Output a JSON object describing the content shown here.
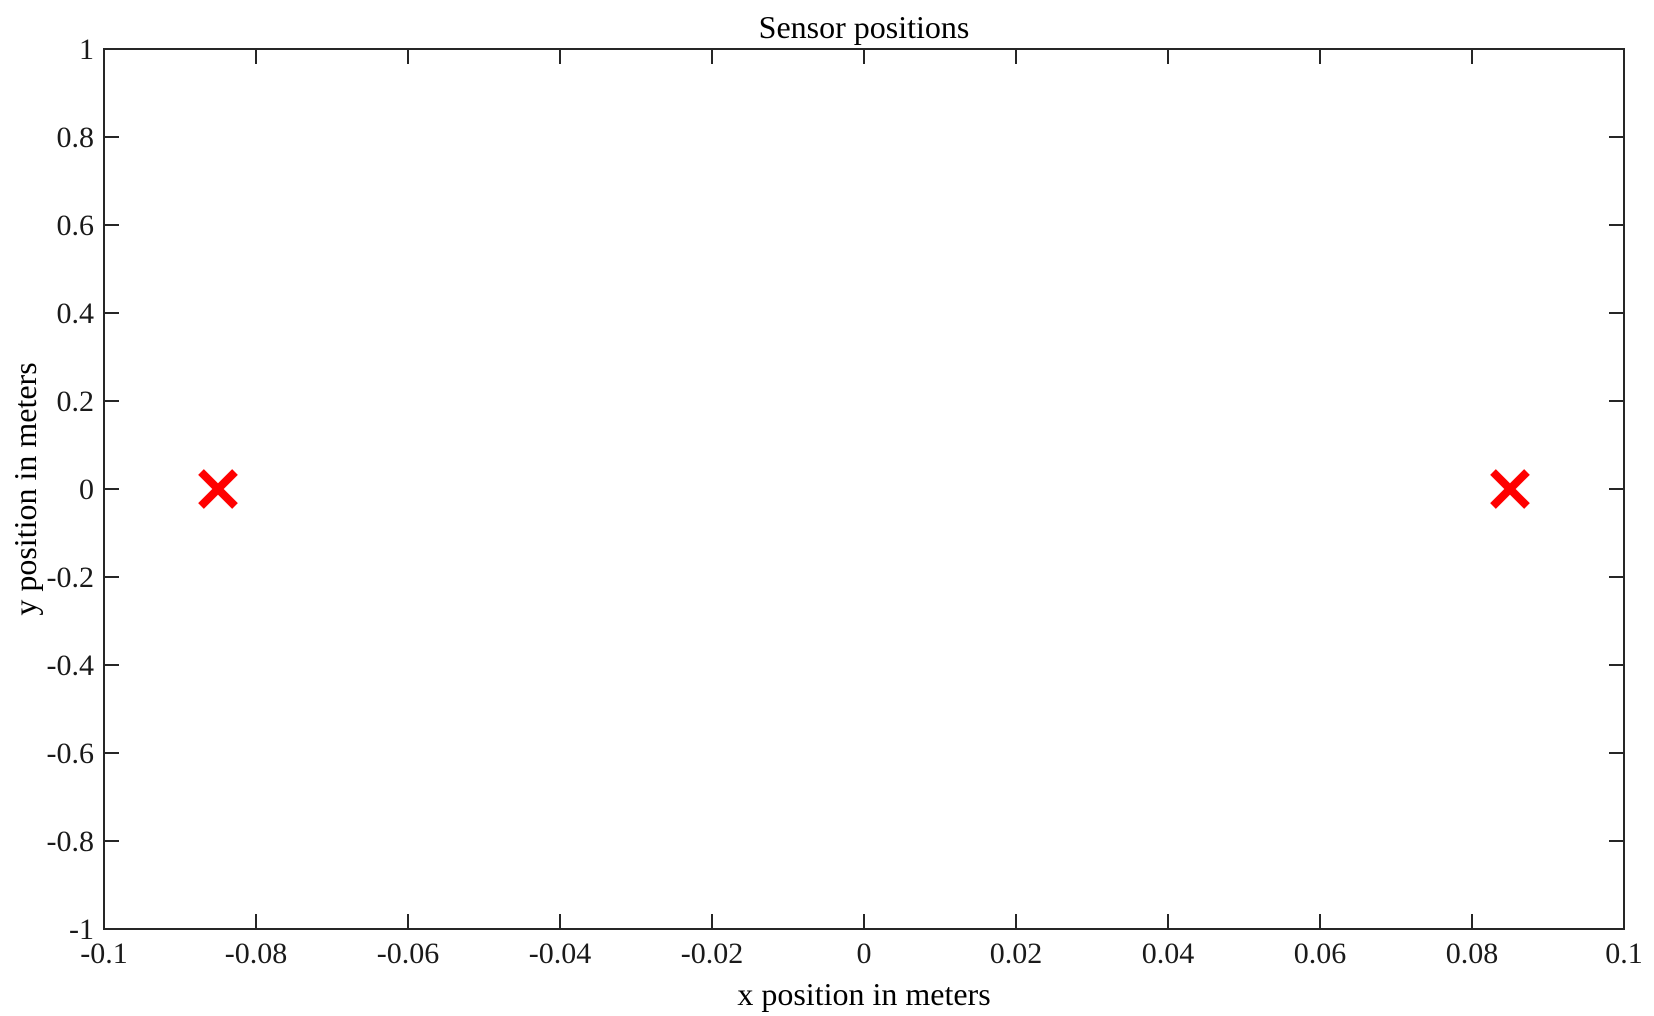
{
  "chart_data": {
    "type": "scatter",
    "title": "Sensor positions",
    "xlabel": "x position in meters",
    "ylabel": "y position in meters",
    "xlim": [
      -0.1,
      0.1
    ],
    "ylim": [
      -1,
      1
    ],
    "xticks": [
      -0.1,
      -0.08,
      -0.06,
      -0.04,
      -0.02,
      0,
      0.02,
      0.04,
      0.06,
      0.08,
      0.1
    ],
    "xtick_labels": [
      "-0.1",
      "-0.08",
      "-0.06",
      "-0.04",
      "-0.02",
      "0",
      "0.02",
      "0.04",
      "0.06",
      "0.08",
      "0.1"
    ],
    "yticks": [
      1,
      0.8,
      0.6,
      0.4,
      0.2,
      0,
      -0.2,
      -0.4,
      -0.6,
      -0.8,
      -1
    ],
    "ytick_labels": [
      "1",
      "0.8",
      "0.6",
      "0.4",
      "0.2",
      "0",
      "-0.2",
      "-0.4",
      "-0.6",
      "-0.8",
      "-1"
    ],
    "grid": false,
    "marker": "x",
    "marker_color": "#ff0000",
    "points": [
      {
        "x": -0.085,
        "y": 0
      },
      {
        "x": 0.085,
        "y": 0
      }
    ]
  }
}
